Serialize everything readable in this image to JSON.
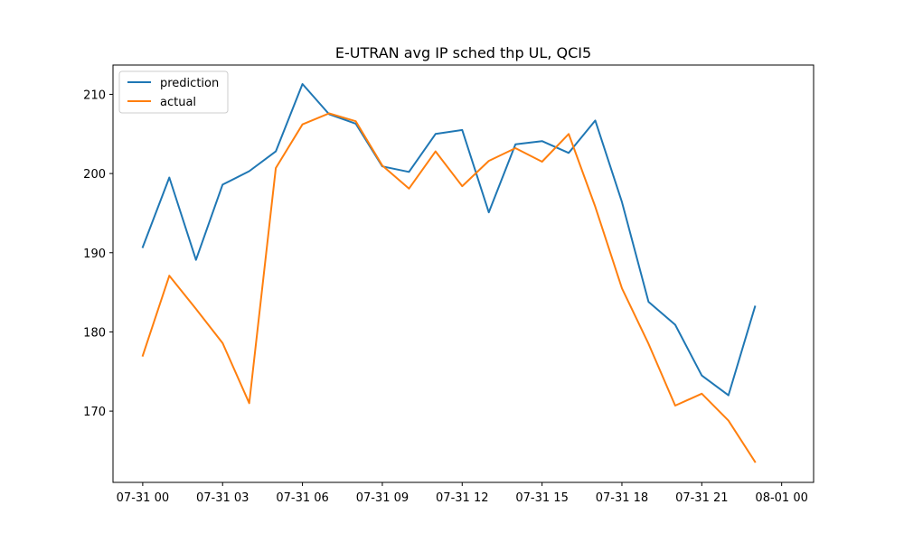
{
  "chart_data": {
    "type": "line",
    "title": "E-UTRAN avg IP sched thp UL, QCI5",
    "xlabel": "",
    "ylabel": "",
    "x_unit": "hour",
    "x": [
      "07-31 00:00",
      "07-31 01:00",
      "07-31 02:00",
      "07-31 03:00",
      "07-31 04:00",
      "07-31 05:00",
      "07-31 06:00",
      "07-31 07:00",
      "07-31 08:00",
      "07-31 09:00",
      "07-31 10:00",
      "07-31 11:00",
      "07-31 12:00",
      "07-31 13:00",
      "07-31 14:00",
      "07-31 15:00",
      "07-31 16:00",
      "07-31 17:00",
      "07-31 18:00",
      "07-31 19:00",
      "07-31 20:00",
      "07-31 21:00",
      "07-31 22:00",
      "07-31 23:00"
    ],
    "xlim": [
      "07-30 22:53",
      "08-01 01:12"
    ],
    "ylim": [
      161.0,
      213.7
    ],
    "x_tick_labels": [
      "07-31 00",
      "07-31 03",
      "07-31 06",
      "07-31 09",
      "07-31 12",
      "07-31 15",
      "07-31 18",
      "07-31 21",
      "08-01 00"
    ],
    "y_ticks": [
      170,
      180,
      190,
      200,
      210
    ],
    "grid": false,
    "legend_position": "top-left",
    "series": [
      {
        "name": "prediction",
        "color": "#1f77b4",
        "values": [
          190.7,
          199.5,
          189.1,
          198.6,
          200.3,
          202.8,
          211.3,
          207.5,
          206.3,
          200.9,
          200.2,
          205.0,
          205.5,
          195.1,
          203.7,
          204.1,
          202.6,
          206.7,
          196.4,
          183.8,
          180.9,
          174.5,
          172.0,
          183.2
        ]
      },
      {
        "name": "actual",
        "color": "#ff7f0e",
        "values": [
          177.0,
          187.1,
          182.9,
          178.6,
          171.0,
          200.7,
          206.2,
          207.6,
          206.6,
          201.0,
          198.1,
          202.8,
          198.4,
          201.6,
          203.2,
          201.5,
          205.0,
          195.8,
          185.5,
          178.5,
          170.7,
          172.2,
          168.8,
          163.6
        ]
      }
    ]
  }
}
